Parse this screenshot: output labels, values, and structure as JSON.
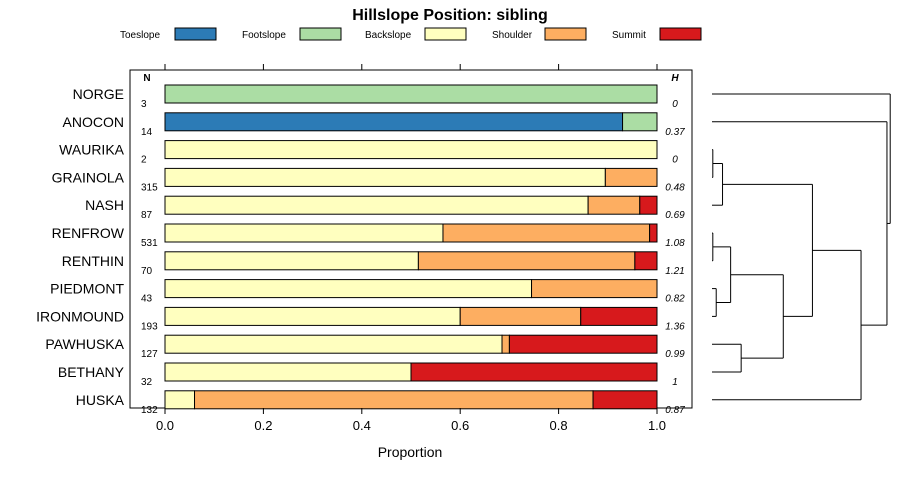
{
  "chart_data": {
    "type": "bar",
    "orientation": "horizontal",
    "stacked": true,
    "title": "Hillslope Position: sibling",
    "xlabel": "Proportion",
    "ylabel": "",
    "xlim": [
      0,
      1
    ],
    "x_ticks": [
      "0.0",
      "0.2",
      "0.4",
      "0.6",
      "0.8",
      "1.0"
    ],
    "n_header": "N",
    "h_header": "H",
    "legend": {
      "placement": "top",
      "entries": [
        {
          "name": "Toeslope",
          "color": "#2c7bb6"
        },
        {
          "name": "Footslope",
          "color": "#abdda4"
        },
        {
          "name": "Backslope",
          "color": "#ffffbf"
        },
        {
          "name": "Shoulder",
          "color": "#fdae61"
        },
        {
          "name": "Summit",
          "color": "#d7191c"
        }
      ]
    },
    "categories": [
      "NORGE",
      "ANOCON",
      "WAURIKA",
      "GRAINOLA",
      "NASH",
      "RENFROW",
      "RENTHIN",
      "PIEDMONT",
      "IRONMOUND",
      "PAWHUSKA",
      "BETHANY",
      "HUSKA"
    ],
    "n": [
      "3",
      "14",
      "2",
      "315",
      "87",
      "531",
      "70",
      "43",
      "193",
      "127",
      "32",
      "132"
    ],
    "h": [
      "0",
      "0.37",
      "0",
      "0.48",
      "0.69",
      "1.08",
      "1.21",
      "0.82",
      "1.36",
      "0.99",
      "1",
      "0.87"
    ],
    "series": [
      {
        "name": "Toeslope",
        "values": [
          0,
          0.93,
          0,
          0,
          0,
          0,
          0,
          0,
          0,
          0,
          0,
          0
        ]
      },
      {
        "name": "Footslope",
        "values": [
          1.0,
          0.07,
          0,
          0,
          0,
          0,
          0,
          0,
          0,
          0,
          0,
          0
        ]
      },
      {
        "name": "Backslope",
        "values": [
          0,
          0,
          1.0,
          0.895,
          0.86,
          0.565,
          0.515,
          0.745,
          0.6,
          0.685,
          0.5,
          0.06
        ]
      },
      {
        "name": "Shoulder",
        "values": [
          0,
          0,
          0,
          0.105,
          0.105,
          0.42,
          0.44,
          0.255,
          0.245,
          0.015,
          0,
          0.81
        ]
      },
      {
        "name": "Summit",
        "values": [
          0,
          0,
          0,
          0,
          0.035,
          0.015,
          0.045,
          0,
          0.155,
          0.3,
          0.5,
          0.13
        ]
      }
    ],
    "dendrogram": {
      "leaf_order": [
        "NORGE",
        "ANOCON",
        "WAURIKA",
        "GRAINOLA",
        "NASH",
        "RENFROW",
        "RENTHIN",
        "PIEDMONT",
        "IRONMOUND",
        "PAWHUSKA",
        "BETHANY",
        "HUSKA"
      ],
      "merges": [
        {
          "a": "WAURIKA",
          "b": "GRAINOLA",
          "height": 0.005
        },
        {
          "a": "RENFROW",
          "b": "RENTHIN",
          "height": 0.005
        },
        {
          "a": "PIEDMONT",
          "b": "IRONMOUND",
          "height": 0.026
        },
        {
          "a": "m1",
          "b": "NASH",
          "height": 0.065
        },
        {
          "a": "m2",
          "b": "m3",
          "height": 0.115
        },
        {
          "a": "PAWHUSKA",
          "b": "BETHANY",
          "height": 0.18
        },
        {
          "a": "m5",
          "b": "m6",
          "height": 0.44
        },
        {
          "a": "m4",
          "b": "m7",
          "height": 0.62
        },
        {
          "a": "m8",
          "b": "HUSKA",
          "height": 0.92
        },
        {
          "a": "ANOCON",
          "b": "m9",
          "height": 1.08
        },
        {
          "a": "NORGE",
          "b": "m10",
          "height": 1.1
        }
      ]
    }
  }
}
